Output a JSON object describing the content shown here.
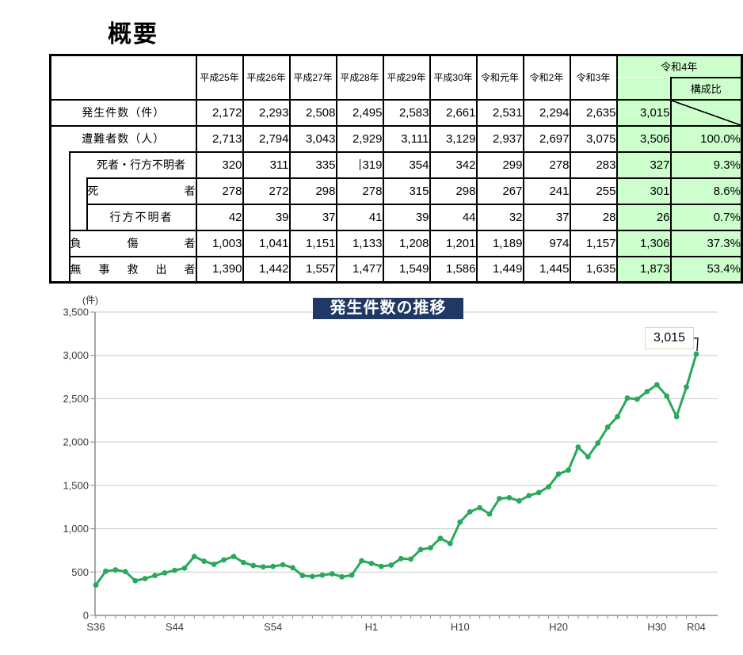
{
  "page_title": "概要",
  "colors": {
    "highlight_green": "#ccffcc",
    "title_bar_navy": "#1f3864",
    "line_green": "#2aa85c",
    "grid_gray": "#c9c9c9",
    "axis_gray": "#8a8a8a"
  },
  "table": {
    "col_headers": [
      "平成25年",
      "平成26年",
      "平成27年",
      "平成28年",
      "平成29年",
      "平成30年",
      "令和元年",
      "令和2年",
      "令和3年"
    ],
    "r4_header": "令和4年",
    "ratio_header": "構成比",
    "caret_cell": {
      "row": 2,
      "col": 3
    },
    "rows": [
      {
        "label": "発生件数（件）",
        "indent": 0,
        "values": [
          "2,172",
          "2,293",
          "2,508",
          "2,495",
          "2,583",
          "2,661",
          "2,531",
          "2,294",
          "2,635"
        ],
        "r4": "3,015",
        "ratio": null
      },
      {
        "label": "遭難者数（人）",
        "indent": 0,
        "values": [
          "2,713",
          "2,794",
          "3,043",
          "2,929",
          "3,111",
          "3,129",
          "2,937",
          "2,697",
          "3,075"
        ],
        "r4": "3,506",
        "ratio": "100.0%"
      },
      {
        "label": "死者・行方不明者",
        "indent": 1,
        "values": [
          "320",
          "311",
          "335",
          "319",
          "354",
          "342",
          "299",
          "278",
          "283"
        ],
        "r4": "327",
        "ratio": "9.3%"
      },
      {
        "label": "死者",
        "indent": 2,
        "values": [
          "278",
          "272",
          "298",
          "278",
          "315",
          "298",
          "267",
          "241",
          "255"
        ],
        "r4": "301",
        "ratio": "8.6%"
      },
      {
        "label": "行方不明者",
        "indent": 2,
        "values": [
          "42",
          "39",
          "37",
          "41",
          "39",
          "44",
          "32",
          "37",
          "28"
        ],
        "r4": "26",
        "ratio": "0.7%"
      },
      {
        "label": "負傷者",
        "indent": 1,
        "values": [
          "1,003",
          "1,041",
          "1,151",
          "1,133",
          "1,208",
          "1,201",
          "1,189",
          "974",
          "1,157"
        ],
        "r4": "1,306",
        "ratio": "37.3%"
      },
      {
        "label": "無事救出者",
        "indent": 1,
        "values": [
          "1,390",
          "1,442",
          "1,557",
          "1,477",
          "1,549",
          "1,586",
          "1,449",
          "1,445",
          "1,635"
        ],
        "r4": "1,873",
        "ratio": "53.4%"
      }
    ]
  },
  "chart_data": {
    "type": "line",
    "title": "発生件数の推移",
    "unit_label": "(件)",
    "ylim": [
      0,
      3500
    ],
    "ytick_step": 500,
    "ytick_labels": [
      "0",
      "500",
      "1,000",
      "1,500",
      "2,000",
      "2,500",
      "3,000",
      "3,500"
    ],
    "grid": true,
    "x_start_year": 1961,
    "x_end_year": 2022,
    "xtick_labels": [
      {
        "label": "S36",
        "year": 1961
      },
      {
        "label": "S44",
        "year": 1969
      },
      {
        "label": "S54",
        "year": 1979
      },
      {
        "label": "H1",
        "year": 1989
      },
      {
        "label": "H10",
        "year": 1998
      },
      {
        "label": "H20",
        "year": 2008
      },
      {
        "label": "H30",
        "year": 2018
      },
      {
        "label": "R04",
        "year": 2022
      }
    ],
    "series": [
      {
        "name": "発生件数",
        "values": [
          350,
          510,
          525,
          505,
          400,
          425,
          460,
          490,
          520,
          545,
          680,
          625,
          590,
          640,
          680,
          610,
          575,
          560,
          565,
          585,
          550,
          460,
          450,
          465,
          480,
          445,
          465,
          630,
          600,
          565,
          580,
          655,
          650,
          760,
          780,
          890,
          830,
          1077,
          1195,
          1243,
          1170,
          1348,
          1358,
          1321,
          1382,
          1417,
          1484,
          1631,
          1676,
          1942,
          1830,
          1988,
          2172,
          2293,
          2508,
          2495,
          2583,
          2661,
          2531,
          2294,
          2635,
          3015
        ]
      }
    ],
    "annotation": {
      "text": "3,015",
      "year": 2022,
      "value": 3015
    }
  }
}
